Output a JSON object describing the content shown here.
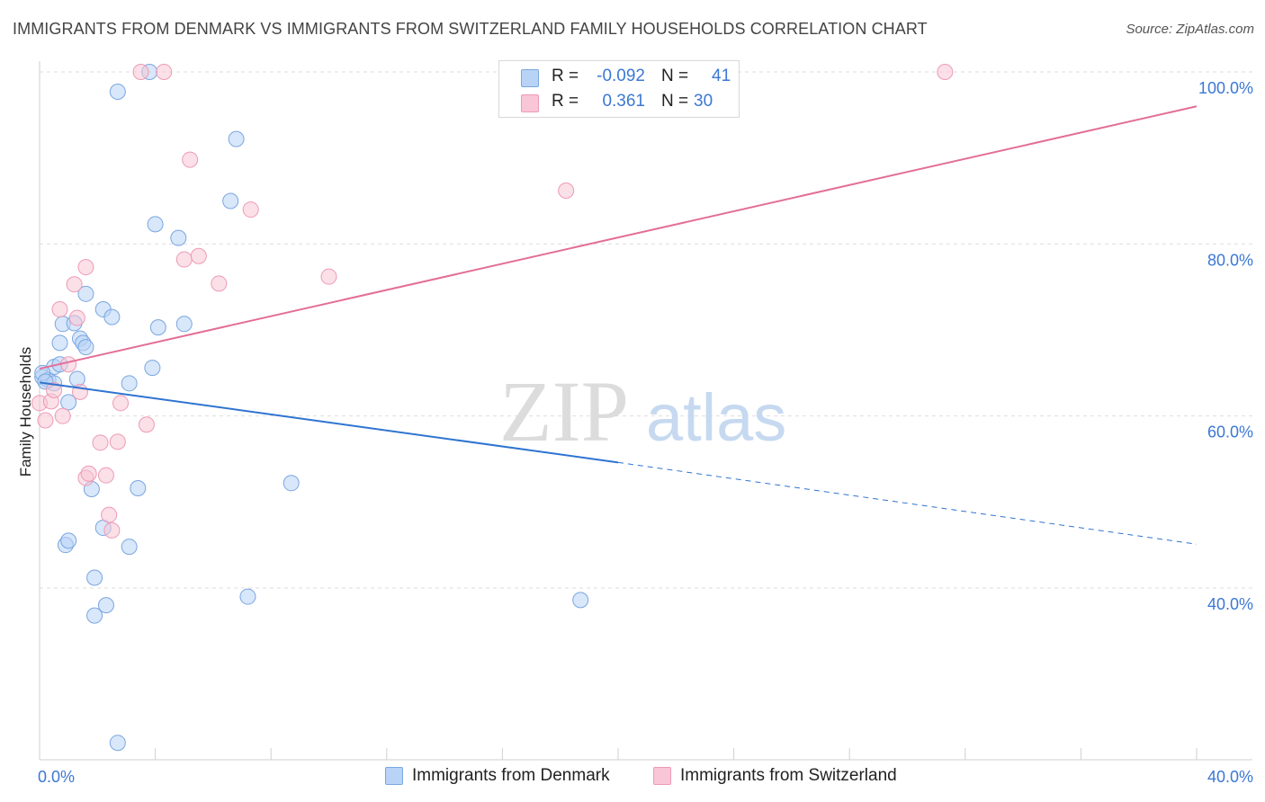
{
  "title": "IMMIGRANTS FROM DENMARK VS IMMIGRANTS FROM SWITZERLAND FAMILY HOUSEHOLDS CORRELATION CHART",
  "source": "Source: ZipAtlas.com",
  "watermark": {
    "zip": "ZIP",
    "atlas": "atlas"
  },
  "legend_top": {
    "rows": [
      {
        "r_label": "R =",
        "r_value": "-0.092",
        "n_label": "N =",
        "n_value": "41"
      },
      {
        "r_label": "R =",
        "r_value": "0.361",
        "n_label": "N =",
        "n_value": "30"
      }
    ]
  },
  "legend_bottom": [
    "Immigrants from Denmark",
    "Immigrants from Switzerland"
  ],
  "colors": {
    "denmark_fill": "#b8d3f5",
    "denmark_stroke": "#7aa6e0",
    "denmark_line": "#2f74d0",
    "switzerland_fill": "#f8c6d6",
    "switzerland_stroke": "#ee9ab6",
    "switzerland_line": "#e36e97",
    "grid": "#dedede",
    "tick_text": "#3b78d4"
  },
  "chart_data": {
    "type": "scatter",
    "title": "IMMIGRANTS FROM DENMARK VS IMMIGRANTS FROM SWITZERLAND FAMILY HOUSEHOLDS CORRELATION CHART",
    "xlabel": "",
    "ylabel": "Family Households",
    "xlim": [
      0,
      40
    ],
    "ylim": [
      20,
      102
    ],
    "x_tick_labels": [
      {
        "value": 0,
        "label": "0.0%"
      },
      {
        "value": 40,
        "label": "40.0%"
      }
    ],
    "y_tick_labels": [
      {
        "value": 40,
        "label": "40.0%"
      },
      {
        "value": 60,
        "label": "60.0%"
      },
      {
        "value": 80,
        "label": "80.0%"
      },
      {
        "value": 100,
        "label": "100.0%"
      }
    ],
    "ylabel_label": "Family Households",
    "series": [
      {
        "name": "Immigrants from Denmark",
        "points": [
          [
            0.1,
            64.5
          ],
          [
            0.3,
            64.2
          ],
          [
            0.5,
            63.8
          ],
          [
            0.5,
            65.7
          ],
          [
            0.7,
            66.0
          ],
          [
            0.7,
            68.5
          ],
          [
            0.8,
            70.7
          ],
          [
            0.9,
            45.0
          ],
          [
            1.0,
            45.5
          ],
          [
            1.0,
            61.6
          ],
          [
            1.2,
            70.8
          ],
          [
            1.3,
            64.3
          ],
          [
            1.4,
            69.0
          ],
          [
            1.5,
            68.5
          ],
          [
            1.6,
            74.2
          ],
          [
            1.6,
            68.0
          ],
          [
            1.9,
            41.2
          ],
          [
            1.8,
            51.5
          ],
          [
            1.9,
            36.8
          ],
          [
            2.2,
            47.0
          ],
          [
            2.2,
            72.4
          ],
          [
            2.3,
            38.0
          ],
          [
            2.5,
            71.5
          ],
          [
            2.7,
            97.7
          ],
          [
            2.7,
            22.0
          ],
          [
            3.1,
            44.8
          ],
          [
            3.1,
            63.8
          ],
          [
            3.4,
            51.6
          ],
          [
            3.8,
            100.0
          ],
          [
            3.9,
            65.6
          ],
          [
            4.0,
            82.3
          ],
          [
            4.1,
            70.3
          ],
          [
            4.8,
            80.7
          ],
          [
            5.0,
            70.7
          ],
          [
            6.6,
            85.0
          ],
          [
            6.8,
            92.2
          ],
          [
            7.2,
            39.0
          ],
          [
            8.7,
            52.2
          ],
          [
            18.7,
            38.6
          ],
          [
            0.1,
            65.0
          ],
          [
            0.2,
            64.0
          ]
        ]
      },
      {
        "name": "Immigrants from Switzerland",
        "points": [
          [
            0.0,
            61.5
          ],
          [
            0.2,
            59.5
          ],
          [
            0.4,
            61.7
          ],
          [
            0.5,
            63.0
          ],
          [
            0.7,
            72.4
          ],
          [
            0.8,
            60.0
          ],
          [
            1.0,
            66.0
          ],
          [
            1.2,
            75.3
          ],
          [
            1.3,
            71.4
          ],
          [
            1.4,
            62.8
          ],
          [
            1.6,
            52.8
          ],
          [
            1.6,
            77.3
          ],
          [
            1.7,
            53.3
          ],
          [
            2.1,
            56.9
          ],
          [
            2.3,
            53.1
          ],
          [
            2.4,
            48.5
          ],
          [
            2.5,
            46.7
          ],
          [
            2.7,
            57.0
          ],
          [
            2.8,
            61.5
          ],
          [
            3.5,
            100.0
          ],
          [
            3.7,
            59.0
          ],
          [
            4.3,
            100.0
          ],
          [
            5.0,
            78.2
          ],
          [
            5.2,
            89.8
          ],
          [
            5.5,
            78.6
          ],
          [
            6.2,
            75.4
          ],
          [
            7.3,
            84.0
          ],
          [
            10.0,
            76.2
          ],
          [
            18.2,
            86.2
          ],
          [
            31.3,
            100.0
          ]
        ]
      }
    ],
    "trend_lines": [
      {
        "name": "Immigrants from Denmark",
        "x_start": 0,
        "y_start": 63.9,
        "x_solid_end": 20,
        "y_solid_end": 54.6,
        "x_end": 40,
        "y_end": 45.1,
        "dashed_after_solid": true
      },
      {
        "name": "Immigrants from Switzerland",
        "x_start": 0,
        "y_start": 65.5,
        "x_end": 40,
        "y_end": 96.0,
        "dashed_after_solid": false
      }
    ],
    "grid": true,
    "legend": "top-center"
  }
}
